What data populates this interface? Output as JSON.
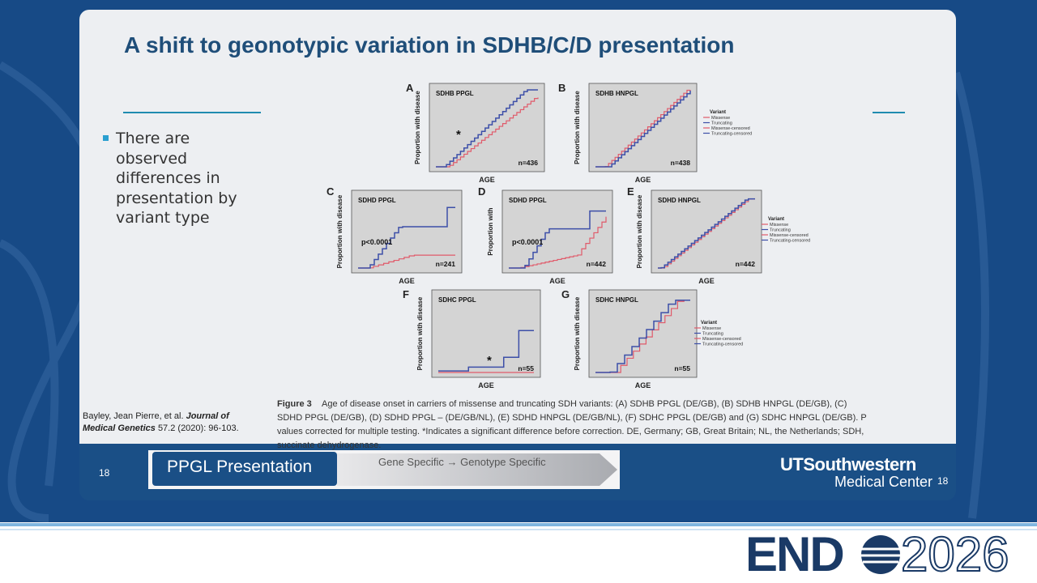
{
  "slide": {
    "title": "A shift to geonotypic variation in SDHB/C/D presentation",
    "bullets": [
      "There are observed differences in presentation by variant type"
    ],
    "citation": {
      "authors": "Bayley, Jean Pierre, et al.",
      "journal": "Journal of Medical Genetics",
      "details": "57.2 (2020): 96-103."
    }
  },
  "figure": {
    "panels": [
      {
        "letter": "A",
        "title": "SDHB PPGL",
        "y_label": "Proportion with disease",
        "x_label": "AGE",
        "n": "n=436",
        "note": "*"
      },
      {
        "letter": "B",
        "title": "SDHB HNPGL",
        "y_label": "Proportion with disease",
        "x_label": "AGE",
        "n": "n=438"
      },
      {
        "letter": "C",
        "title": "SDHD PPGL",
        "y_label": "Proportion with disease",
        "x_label": "AGE",
        "n": "n=241",
        "p": "p<0.0001"
      },
      {
        "letter": "D",
        "title": "SDHD PPGL",
        "y_label": "Proportion with",
        "x_label": "AGE",
        "n": "n=442",
        "p": "p<0.0001"
      },
      {
        "letter": "E",
        "title": "SDHD HNPGL",
        "y_label": "Proportion with disease",
        "x_label": "AGE",
        "n": "n=442"
      },
      {
        "letter": "F",
        "title": "SDHC PPGL",
        "y_label": "Proportion with disease",
        "x_label": "AGE",
        "n": "n=55",
        "note": "*"
      },
      {
        "letter": "G",
        "title": "SDHC HNPGL",
        "y_label": "Proportion with disease",
        "x_label": "AGE",
        "n": "n=55"
      }
    ],
    "legend": {
      "title": "Variant",
      "entries": [
        "Missense",
        "Truncating",
        "Missense-censored",
        "Truncating-censored"
      ]
    },
    "caption": {
      "label": "Figure 3",
      "text": "Age of disease onset in carriers of missense and truncating SDH variants: (A) SDHB PPGL (DE/GB), (B) SDHB HNPGL (DE/GB), (C) SDHD PPGL (DE/GB), (D) SDHD PPGL – (DE/GB/NL), (E) SDHD HNPGL (DE/GB/NL), (F) SDHC PPGL (DE/GB) and (G) SDHC HNPGL (DE/GB). P values corrected for multiple testing. *Indicates a significant difference before correction. DE, Germany; GB, Great Britain; NL, the Netherlands; SDH, succinate dehydrogenase."
    }
  },
  "footer": {
    "page": "18",
    "banner": "PPGL Presentation",
    "arrow": "Gene Specific → Genotype Specific",
    "logo_top": "UTSouthwestern",
    "logo_bottom": "Medical Center"
  },
  "conference": {
    "name": "END",
    "year": "2026"
  }
}
